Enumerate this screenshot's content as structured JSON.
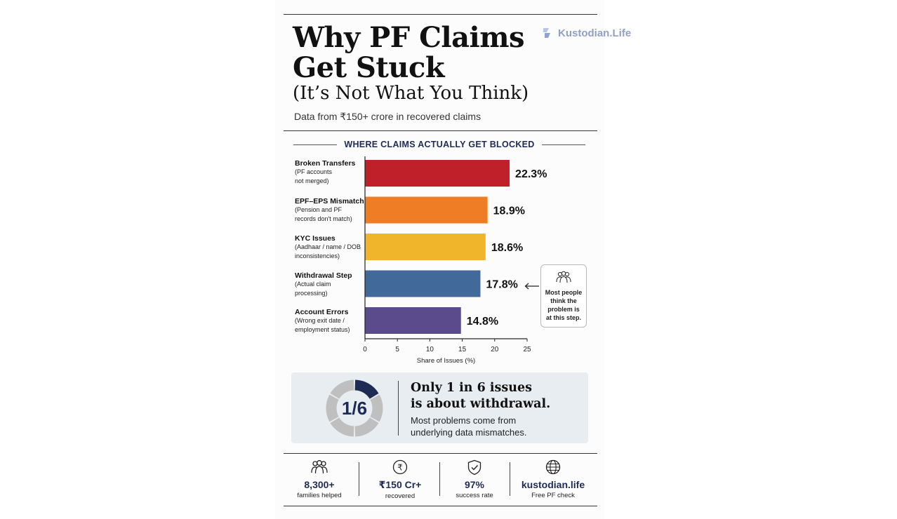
{
  "header": {
    "title_line1": "Why PF Claims",
    "title_line2": "Get Stuck",
    "subtitle": "(It’s Not What You Think)",
    "tagline": "Data from ₹150+ crore in recovered claims",
    "brand": "Kustodian.Life"
  },
  "chart_data": {
    "type": "bar",
    "orientation": "horizontal",
    "title": "WHERE CLAIMS ACTUALLY GET BLOCKED",
    "xlabel": "Share of Issues (%)",
    "xlim": [
      0,
      25
    ],
    "xticks": [
      "0",
      "5",
      "10",
      "15",
      "20",
      "25"
    ],
    "categories": [
      {
        "label": "Broken Transfers",
        "sub": [
          "(PF accounts",
          "not merged)"
        ]
      },
      {
        "label": "EPF–EPS Mismatch",
        "sub": [
          "(Pension and PF",
          "records don't match)"
        ]
      },
      {
        "label": "KYC Issues",
        "sub": [
          "(Aadhaar / name / DOB",
          "inconsistencies)"
        ]
      },
      {
        "label": "Withdrawal Step",
        "sub": [
          "(Actual claim",
          "processing)"
        ]
      },
      {
        "label": "Account Errors",
        "sub": [
          "(Wrong exit date /",
          "employment status)"
        ]
      }
    ],
    "values": [
      22.3,
      18.9,
      18.6,
      17.8,
      14.8
    ],
    "value_labels": [
      "22.3%",
      "18.9%",
      "18.6%",
      "17.8%",
      "14.8%"
    ],
    "colors": [
      "#c0202a",
      "#ee7d26",
      "#f0b52a",
      "#41699a",
      "#5b4a8c"
    ],
    "grid": false,
    "annotation": {
      "text": [
        "Most people",
        "think the",
        "problem is",
        "at this step."
      ],
      "target": "Withdrawal Step"
    }
  },
  "summary": {
    "fraction": "1/6",
    "fraction_value": 0.1667,
    "headline_line1": "Only 1 in 6 issues",
    "headline_line2": "is about withdrawal.",
    "sub_line1": "Most problems come from",
    "sub_line2": "underlying data mismatches."
  },
  "stats": [
    {
      "icon": "people-icon",
      "value": "8,300+",
      "label": "families helped"
    },
    {
      "icon": "rupee-icon",
      "value": "₹150 Cr+",
      "label": "recovered"
    },
    {
      "icon": "shield-check-icon",
      "value": "97%",
      "label": "success rate"
    },
    {
      "icon": "globe-icon",
      "value": "kustodian.life",
      "label": "Free PF check"
    }
  ]
}
